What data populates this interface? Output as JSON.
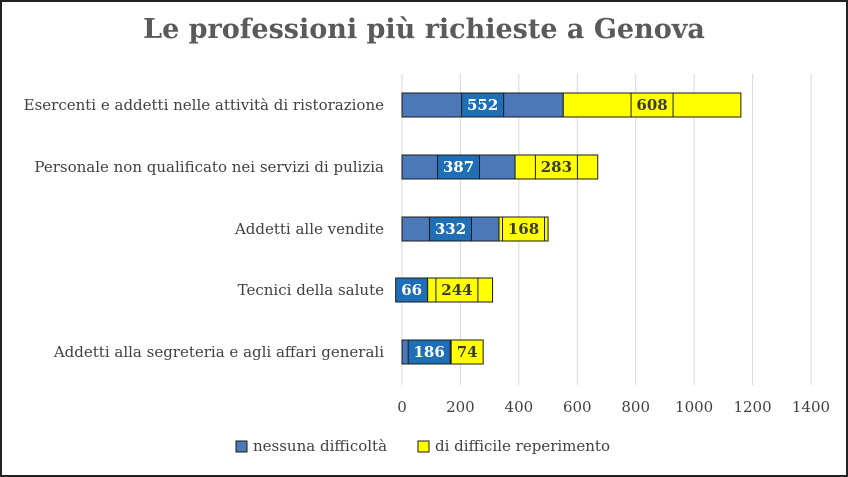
{
  "chart_data": {
    "type": "bar",
    "orientation": "horizontal",
    "stacked": true,
    "title": "Le professioni più richieste a Genova",
    "categories": [
      "Esercenti e addetti nelle attività di ristorazione",
      "Personale non qualificato nei servizi di pulizia",
      "Addetti alle vendite",
      "Tecnici della salute",
      "Addetti alla segreteria e agli affari generali"
    ],
    "series": [
      {
        "name": "nessuna difficoltà",
        "color": "#4a78b8",
        "label_color": "#1f6fb7",
        "values": [
          552,
          387,
          332,
          66,
          186
        ]
      },
      {
        "name": "di difficile reperimento",
        "color": "#ffff00",
        "label_color": "#ffff00",
        "values": [
          608,
          283,
          168,
          244,
          74
        ]
      }
    ],
    "xlim": [
      0,
      1400
    ],
    "xticks": [
      "0",
      "200",
      "400",
      "600",
      "800",
      "1000",
      "1200",
      "1400"
    ],
    "grid": true,
    "legend": "bottom"
  }
}
